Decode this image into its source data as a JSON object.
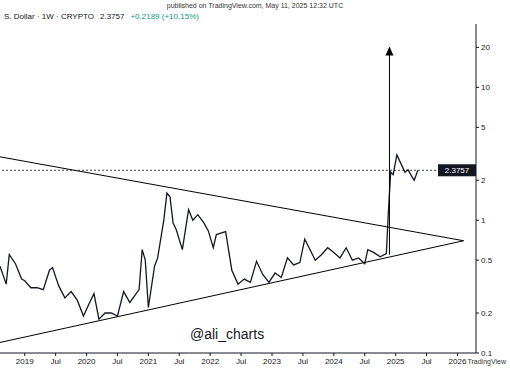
{
  "header": {
    "published": "published on TradingView.com, May 11, 2025 12:32 UTC",
    "symbol": "S. Dollar · 1W · CRYPTO",
    "price": 2.3757,
    "change": "+0.2189 (+10.15%)"
  },
  "watermark": "@ali_charts",
  "brand": "TradingView",
  "chart_data": {
    "type": "line",
    "log": "y",
    "grid": false,
    "xlim": [
      2018.6,
      2026.3
    ],
    "xticks": [
      {
        "value": 2019,
        "label": "2019"
      },
      {
        "value": 2019.5,
        "label": "Jul"
      },
      {
        "value": 2020,
        "label": "2020"
      },
      {
        "value": 2020.5,
        "label": "Jul"
      },
      {
        "value": 2021,
        "label": "2021"
      },
      {
        "value": 2021.5,
        "label": "Jul"
      },
      {
        "value": 2022,
        "label": "2022"
      },
      {
        "value": 2022.5,
        "label": "Jul"
      },
      {
        "value": 2023,
        "label": "2023"
      },
      {
        "value": 2023.5,
        "label": "Jul"
      },
      {
        "value": 2024,
        "label": "2024"
      },
      {
        "value": 2024.5,
        "label": "Jul"
      },
      {
        "value": 2025,
        "label": "2025"
      },
      {
        "value": 2025.5,
        "label": "Jul"
      },
      {
        "value": 2026,
        "label": "2026"
      }
    ],
    "ylim": [
      0.1,
      30
    ],
    "yticks": [
      0.1,
      0.2,
      0.5,
      1,
      2,
      5,
      10,
      20
    ],
    "series": [
      {
        "color": "#131722",
        "line_style": "solid",
        "x": [
          2018.6,
          2018.7,
          2018.75,
          2018.85,
          2018.95,
          2019.0,
          2019.1,
          2019.2,
          2019.3,
          2019.4,
          2019.45,
          2019.55,
          2019.65,
          2019.75,
          2019.85,
          2019.95,
          2020.05,
          2020.12,
          2020.2,
          2020.3,
          2020.4,
          2020.5,
          2020.6,
          2020.7,
          2020.85,
          2020.9,
          2020.95,
          2021.0,
          2021.1,
          2021.15,
          2021.25,
          2021.3,
          2021.35,
          2021.4,
          2021.45,
          2021.55,
          2021.65,
          2021.72,
          2021.8,
          2021.9,
          2021.97,
          2022.05,
          2022.1,
          2022.25,
          2022.35,
          2022.45,
          2022.55,
          2022.65,
          2022.75,
          2022.85,
          2022.95,
          2023.05,
          2023.15,
          2023.25,
          2023.35,
          2023.45,
          2023.53,
          2023.6,
          2023.7,
          2023.8,
          2023.9,
          2024.0,
          2024.1,
          2024.2,
          2024.3,
          2024.4,
          2024.5,
          2024.55,
          2024.65,
          2024.75,
          2024.85,
          2024.88,
          2024.92,
          2024.96,
          2025.02,
          2025.08,
          2025.15,
          2025.2,
          2025.27,
          2025.3,
          2025.36
        ],
        "values": [
          0.45,
          0.33,
          0.55,
          0.47,
          0.36,
          0.35,
          0.31,
          0.31,
          0.3,
          0.42,
          0.44,
          0.32,
          0.26,
          0.29,
          0.25,
          0.19,
          0.24,
          0.28,
          0.18,
          0.2,
          0.2,
          0.19,
          0.29,
          0.24,
          0.3,
          0.6,
          0.5,
          0.22,
          0.45,
          0.52,
          1.0,
          1.6,
          1.5,
          0.95,
          0.85,
          0.6,
          1.2,
          1.0,
          1.1,
          0.95,
          0.83,
          0.62,
          0.78,
          0.82,
          0.42,
          0.33,
          0.36,
          0.34,
          0.49,
          0.39,
          0.34,
          0.4,
          0.37,
          0.52,
          0.46,
          0.48,
          0.72,
          0.62,
          0.5,
          0.55,
          0.62,
          0.57,
          0.52,
          0.62,
          0.5,
          0.52,
          0.47,
          0.6,
          0.57,
          0.53,
          0.56,
          1.1,
          2.3,
          2.2,
          3.1,
          2.7,
          2.3,
          2.4,
          2.1,
          2.0,
          2.3757
        ]
      },
      {
        "color": "#000000",
        "line_style": "solid",
        "x": [
          2018.6,
          2026.1
        ],
        "values": [
          3.0,
          0.7
        ]
      },
      {
        "color": "#000000",
        "line_style": "solid",
        "x": [
          2018.6,
          2026.1
        ],
        "values": [
          0.12,
          0.7
        ]
      },
      {
        "color": "#000000",
        "line_style": "solid",
        "marker": "arrow",
        "x": [
          2024.9,
          2024.9
        ],
        "values": [
          0.55,
          20
        ]
      }
    ]
  }
}
